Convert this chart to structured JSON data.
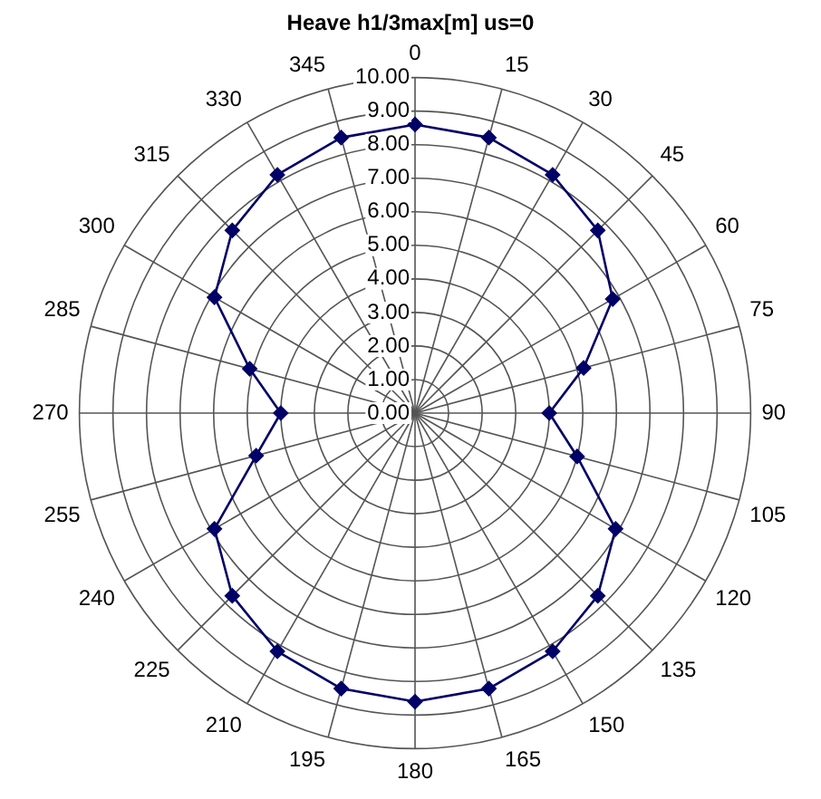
{
  "chart_data": {
    "type": "radar",
    "title": "Heave h1/3max[m] us=0",
    "categories": [
      "0",
      "15",
      "30",
      "45",
      "60",
      "75",
      "90",
      "105",
      "120",
      "135",
      "150",
      "165",
      "180",
      "195",
      "210",
      "225",
      "240",
      "255",
      "270",
      "285",
      "300",
      "315",
      "330",
      "345"
    ],
    "series": [
      {
        "color": "#000066",
        "values": [
          8.6,
          8.5,
          8.2,
          7.7,
          6.8,
          5.2,
          4.0,
          5.0,
          6.9,
          7.7,
          8.2,
          8.5,
          8.6,
          8.5,
          8.2,
          7.7,
          6.9,
          4.9,
          4.0,
          5.1,
          6.9,
          7.7,
          8.2,
          8.5
        ]
      }
    ],
    "ylim": [
      0,
      10
    ],
    "yticks": [
      {
        "value": 0,
        "label": "0.00"
      },
      {
        "value": 1,
        "label": "1.00"
      },
      {
        "value": 2,
        "label": "2.00"
      },
      {
        "value": 3,
        "label": "3.00"
      },
      {
        "value": 4,
        "label": "4.00"
      },
      {
        "value": 5,
        "label": "5.00"
      },
      {
        "value": 6,
        "label": "6.00"
      },
      {
        "value": 7,
        "label": "7.00"
      },
      {
        "value": 8,
        "label": "8.00"
      },
      {
        "value": 9,
        "label": "9.00"
      },
      {
        "value": 10,
        "label": "10.00"
      }
    ],
    "grid": true,
    "legend": false,
    "marker": "diamond",
    "line_style": "solid"
  }
}
